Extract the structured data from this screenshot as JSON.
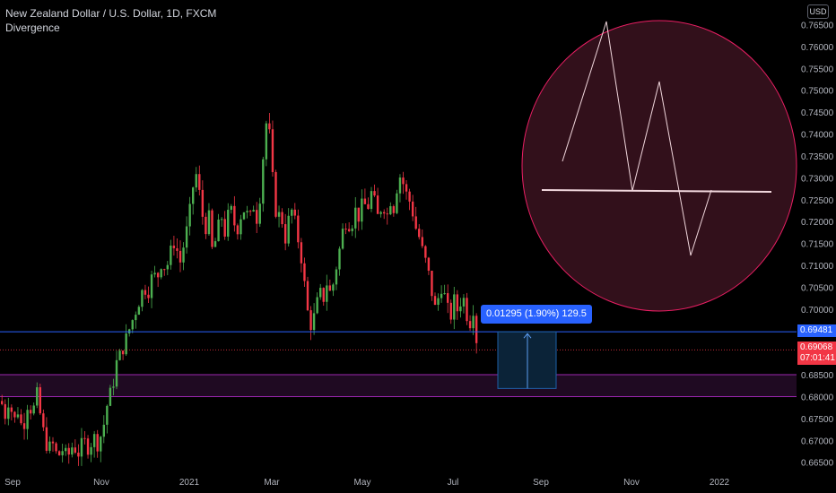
{
  "header": {
    "symbol_title": "New Zealand Dollar / U.S. Dollar, 1D, FXCM",
    "indicator": "Divergence",
    "currency_button": "USD"
  },
  "measure": {
    "label": "0.01295 (1.90%) 129.5"
  },
  "price_tags": {
    "blue": "0.69481",
    "last_price": "0.69068",
    "countdown": "07:01:41"
  },
  "chart_data": {
    "type": "candlestick",
    "symbol": "NZDUSD",
    "y_axis": {
      "ticks": [
        "0.76500",
        "0.76000",
        "0.75500",
        "0.75000",
        "0.74500",
        "0.74000",
        "0.73500",
        "0.73000",
        "0.72500",
        "0.72000",
        "0.71500",
        "0.71000",
        "0.70500",
        "0.70000",
        "0.69500",
        "0.69000",
        "0.68500",
        "0.68000",
        "0.67500",
        "0.67000",
        "0.66500"
      ],
      "ylim": [
        0.6635,
        0.769
      ]
    },
    "x_axis": {
      "ticks": [
        "Sep",
        "Oct",
        "Nov",
        "2021",
        "Mar",
        "May",
        "Jul",
        "Sep",
        "Nov",
        "2022"
      ]
    },
    "price_path": [
      [
        0,
        0.679
      ],
      [
        5,
        0.6755
      ],
      [
        9,
        0.68
      ],
      [
        14,
        0.674
      ],
      [
        19,
        0.677
      ],
      [
        24,
        0.672
      ],
      [
        30,
        0.679
      ],
      [
        35,
        0.676
      ],
      [
        40,
        0.6805
      ],
      [
        46,
        0.673
      ],
      [
        52,
        0.668
      ],
      [
        58,
        0.669
      ],
      [
        63,
        0.666
      ],
      [
        68,
        0.668
      ],
      [
        74,
        0.666
      ],
      [
        80,
        0.669
      ],
      [
        86,
        0.667
      ],
      [
        92,
        0.67
      ],
      [
        98,
        0.668
      ],
      [
        103,
        0.671
      ],
      [
        108,
        0.669
      ],
      [
        114,
        0.673
      ],
      [
        119,
        0.679
      ],
      [
        124,
        0.682
      ],
      [
        129,
        0.688
      ],
      [
        134,
        0.69
      ],
      [
        139,
        0.693
      ],
      [
        144,
        0.696
      ],
      [
        149,
        0.699
      ],
      [
        154,
        0.702
      ],
      [
        159,
        0.705
      ],
      [
        164,
        0.704
      ],
      [
        169,
        0.708
      ],
      [
        174,
        0.707
      ],
      [
        179,
        0.711
      ],
      [
        184,
        0.709
      ],
      [
        189,
        0.713
      ],
      [
        194,
        0.716
      ],
      [
        199,
        0.71
      ],
      [
        204,
        0.715
      ],
      [
        209,
        0.72
      ],
      [
        214,
        0.728
      ],
      [
        218,
        0.731
      ],
      [
        222,
        0.725
      ],
      [
        227,
        0.718
      ],
      [
        232,
        0.721
      ],
      [
        236,
        0.712
      ],
      [
        241,
        0.718
      ],
      [
        246,
        0.721
      ],
      [
        250,
        0.717
      ],
      [
        255,
        0.724
      ],
      [
        259,
        0.72
      ],
      [
        263,
        0.718
      ],
      [
        268,
        0.722
      ],
      [
        272,
        0.723
      ],
      [
        277,
        0.72
      ],
      [
        281,
        0.724
      ],
      [
        286,
        0.72
      ],
      [
        290,
        0.729
      ],
      [
        294,
        0.74
      ],
      [
        297,
        0.7445
      ],
      [
        300,
        0.738
      ],
      [
        304,
        0.726
      ],
      [
        308,
        0.72
      ],
      [
        312,
        0.723
      ],
      [
        316,
        0.715
      ],
      [
        320,
        0.72
      ],
      [
        325,
        0.723
      ],
      [
        329,
        0.718
      ],
      [
        334,
        0.713
      ],
      [
        338,
        0.706
      ],
      [
        342,
        0.699
      ],
      [
        346,
        0.696
      ],
      [
        350,
        0.699
      ],
      [
        355,
        0.704
      ],
      [
        359,
        0.702
      ],
      [
        363,
        0.706
      ],
      [
        368,
        0.703
      ],
      [
        372,
        0.708
      ],
      [
        376,
        0.712
      ],
      [
        381,
        0.718
      ],
      [
        386,
        0.721
      ],
      [
        390,
        0.718
      ],
      [
        394,
        0.723
      ],
      [
        399,
        0.721
      ],
      [
        404,
        0.725
      ],
      [
        408,
        0.722
      ],
      [
        412,
        0.727
      ],
      [
        417,
        0.724
      ],
      [
        421,
        0.72
      ],
      [
        425,
        0.725
      ],
      [
        430,
        0.721
      ],
      [
        434,
        0.725
      ],
      [
        438,
        0.723
      ],
      [
        442,
        0.729
      ],
      [
        446,
        0.731
      ],
      [
        450,
        0.727
      ],
      [
        455,
        0.725
      ],
      [
        459,
        0.722
      ],
      [
        463,
        0.718
      ],
      [
        467,
        0.716
      ],
      [
        471,
        0.712
      ],
      [
        475,
        0.71
      ],
      [
        479,
        0.705
      ],
      [
        484,
        0.7
      ],
      [
        488,
        0.703
      ],
      [
        492,
        0.706
      ],
      [
        496,
        0.701
      ],
      [
        501,
        0.698
      ],
      [
        505,
        0.702
      ],
      [
        510,
        0.699
      ],
      [
        514,
        0.704
      ],
      [
        518,
        0.7
      ],
      [
        522,
        0.696
      ],
      [
        526,
        0.701
      ],
      [
        530,
        0.693
      ]
    ]
  },
  "callout": {
    "shape": "zigzag-on-horizontal-line",
    "fill_color": "#32101b",
    "border_color": "#e91e63",
    "line_color": "#f0d6dc"
  },
  "colors": {
    "up": "#4caf50",
    "down": "#f23645",
    "accent_blue": "#2962ff",
    "zone_border": "#9c27b0",
    "zone_fill": "#1f0a22",
    "measure_fill": "#0b2338",
    "background": "#000000"
  }
}
